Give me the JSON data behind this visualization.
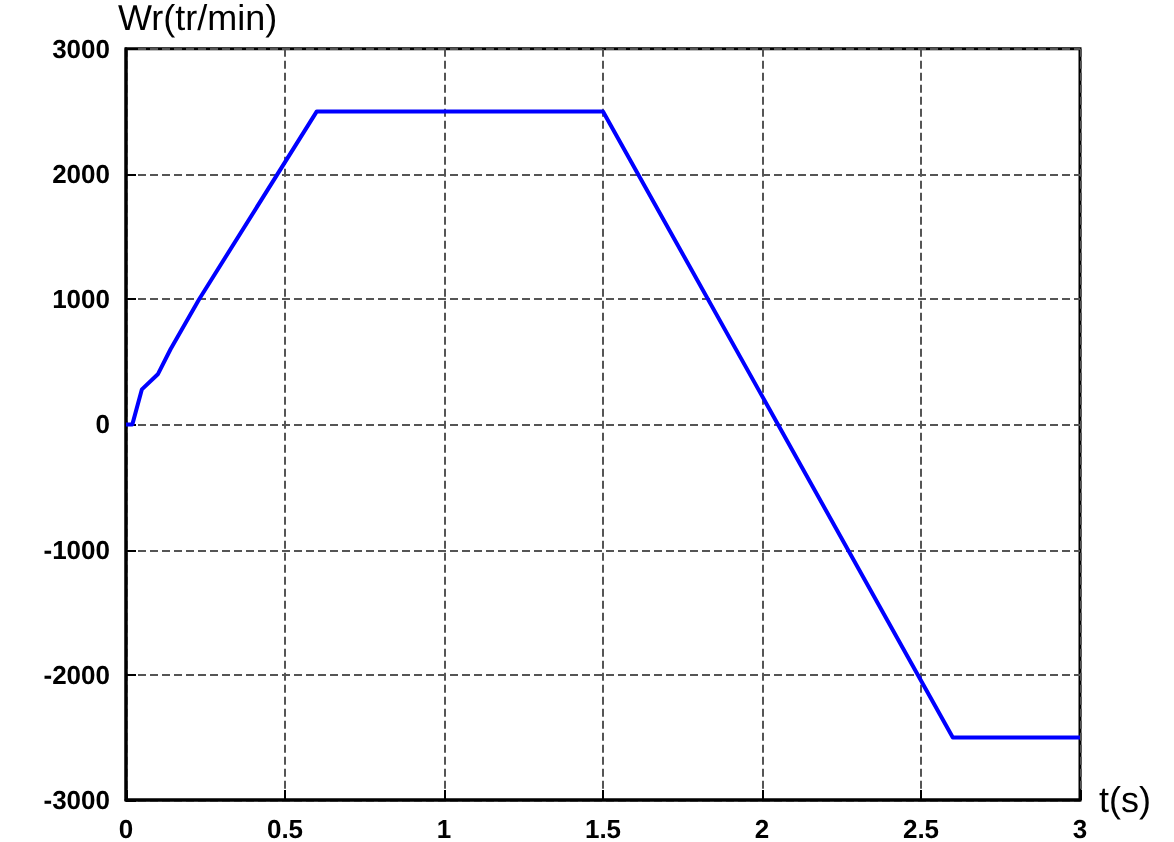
{
  "chart_data": {
    "type": "line",
    "ylabel": "Wr(tr/min)",
    "xlabel": "t(s)",
    "x": [
      0,
      0.02,
      0.05,
      0.1,
      0.14,
      0.23,
      0.6,
      1.5,
      2.6,
      3
    ],
    "series": [
      {
        "color": "#0000ff",
        "values": [
          0,
          0,
          280,
          400,
          600,
          1000,
          2500,
          2500,
          -2500,
          -2500
        ]
      }
    ],
    "xlim": [
      0,
      3
    ],
    "xticks": [
      0,
      0.5,
      1,
      1.5,
      2,
      2.5,
      3
    ],
    "ylim": [
      -3000,
      3000
    ],
    "yticks": [
      -3000,
      -2000,
      -1000,
      0,
      1000,
      2000,
      3000
    ],
    "grid": true,
    "marker": "none",
    "line_style": "solid"
  }
}
